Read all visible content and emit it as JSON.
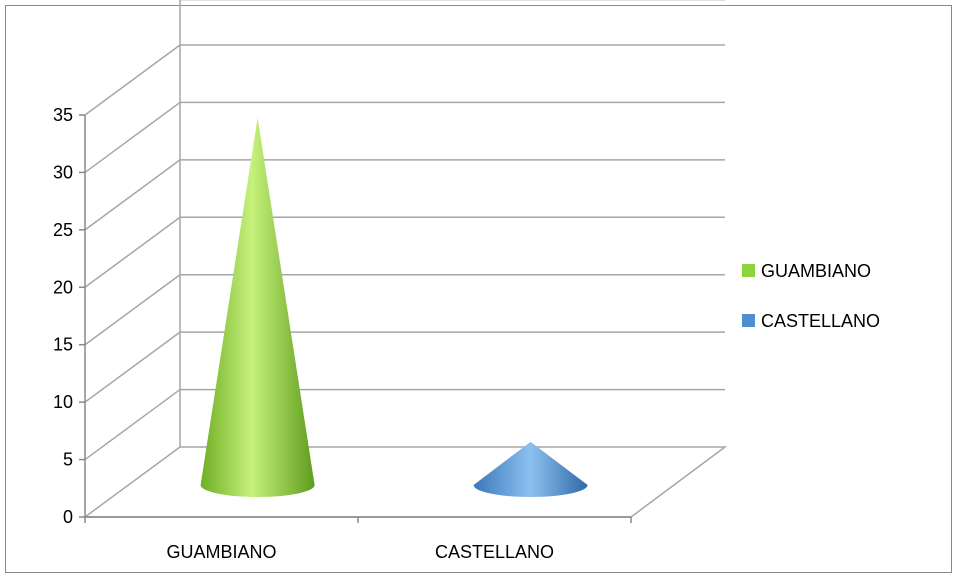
{
  "chart_data": {
    "type": "bar",
    "subtype": "3d-cone",
    "title": "",
    "xlabel": "",
    "ylabel": "",
    "ylim": [
      0,
      35
    ],
    "yticks": [
      0,
      5,
      10,
      15,
      20,
      25,
      30,
      35
    ],
    "grid": true,
    "legend_position": "right",
    "categories": [
      "GUAMBIANO",
      "CASTELLANO"
    ],
    "series": [
      {
        "name": "GUAMBIANO",
        "values": [
          34,
          0
        ],
        "color": "#8cd43c"
      },
      {
        "name": "CASTELLANO",
        "values": [
          0,
          4
        ],
        "color": "#4f8fd0"
      }
    ]
  }
}
